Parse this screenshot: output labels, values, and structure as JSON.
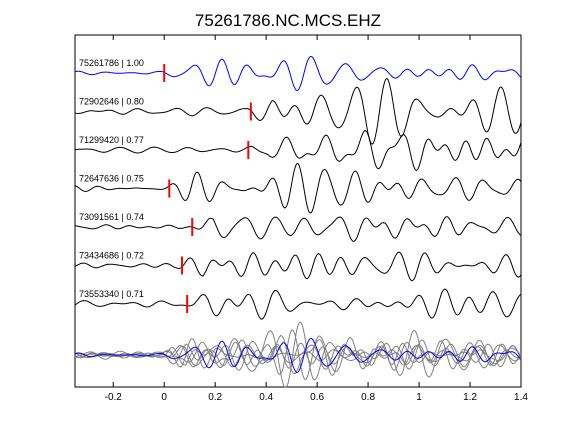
{
  "chart_data": {
    "type": "line",
    "title": "75261786.NC.MCS.EHZ",
    "xlabel": "",
    "ylabel": "",
    "xlim": [
      -0.35,
      1.4
    ],
    "xticks": [
      -0.2,
      0,
      0.2,
      0.4,
      0.6,
      0.8,
      1,
      1.2,
      1.4
    ],
    "xtick_labels": [
      "-0.2",
      "0",
      "0.2",
      "0.4",
      "0.6",
      "0.8",
      "1",
      "1.2",
      "1.4"
    ],
    "traces": [
      {
        "label": "75261786 | 1.00",
        "pick": 0.0,
        "color": "#0000ff"
      },
      {
        "label": "72902646 | 0.80",
        "pick": 0.34,
        "color": "#000000"
      },
      {
        "label": "71299420 | 0.77",
        "pick": 0.33,
        "color": "#000000"
      },
      {
        "label": "72647636 | 0.75",
        "pick": 0.02,
        "color": "#000000"
      },
      {
        "label": "73091561 | 0.74",
        "pick": 0.11,
        "color": "#000000"
      },
      {
        "label": "73434686 | 0.72",
        "pick": 0.07,
        "color": "#000000"
      },
      {
        "label": "73553340 | 0.71",
        "pick": 0.09,
        "color": "#000000"
      }
    ],
    "pick_color": "#ff0000",
    "stack_color": "#808080"
  }
}
